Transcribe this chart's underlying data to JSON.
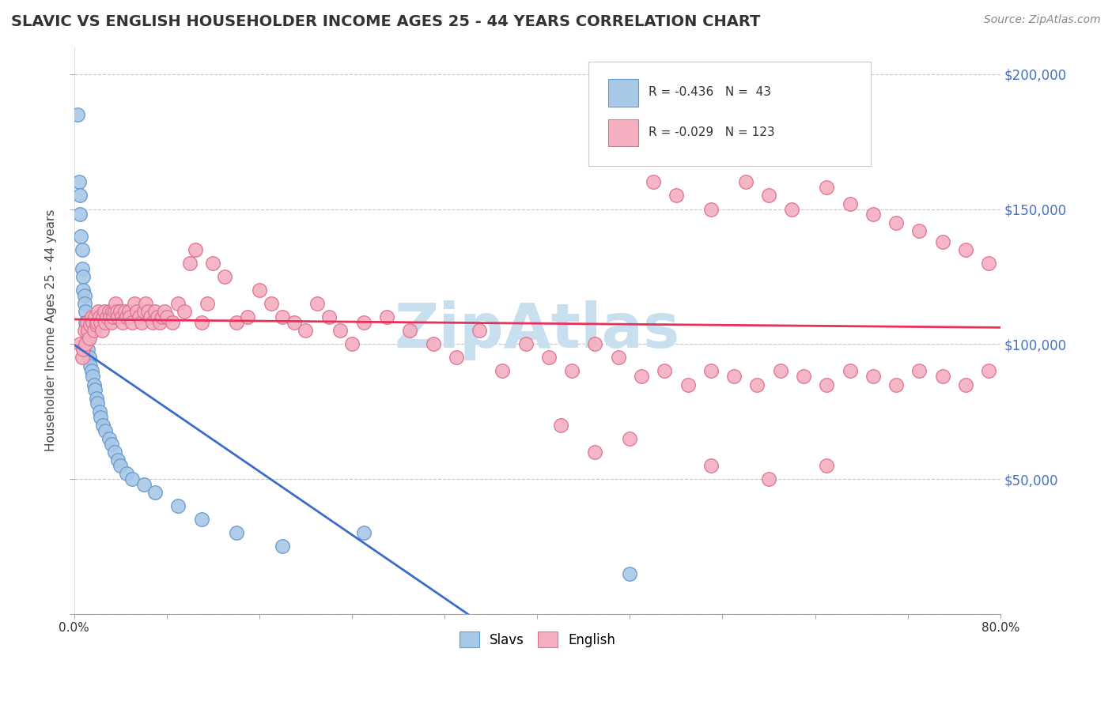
{
  "title": "SLAVIC VS ENGLISH HOUSEHOLDER INCOME AGES 25 - 44 YEARS CORRELATION CHART",
  "source": "Source: ZipAtlas.com",
  "ylabel": "Householder Income Ages 25 - 44 years",
  "xlim": [
    0.0,
    0.8
  ],
  "ylim": [
    0,
    210000
  ],
  "yticks": [
    0,
    50000,
    100000,
    150000,
    200000
  ],
  "ytick_labels_right": [
    "",
    "$50,000",
    "$100,000",
    "$150,000",
    "$200,000"
  ],
  "xticks": [
    0.0,
    0.08,
    0.16,
    0.24,
    0.32,
    0.4,
    0.48,
    0.56,
    0.64,
    0.72,
    0.8
  ],
  "xtick_labels": [
    "0.0%",
    "",
    "",
    "",
    "",
    "",
    "",
    "",
    "",
    "",
    "80.0%"
  ],
  "slavs_color": "#a8c8e8",
  "slavs_edge_color": "#6699cc",
  "english_color": "#f4afc0",
  "english_edge_color": "#e07090",
  "slavs_line_color": "#3a6cc8",
  "english_line_color": "#e8305a",
  "background_color": "#ffffff",
  "grid_color": "#c8c8c8",
  "watermark_color": "#c8dff0",
  "slavs_x": [
    0.003,
    0.004,
    0.005,
    0.005,
    0.006,
    0.007,
    0.007,
    0.008,
    0.008,
    0.009,
    0.009,
    0.01,
    0.01,
    0.011,
    0.012,
    0.012,
    0.013,
    0.014,
    0.015,
    0.016,
    0.017,
    0.018,
    0.019,
    0.02,
    0.022,
    0.023,
    0.025,
    0.027,
    0.03,
    0.032,
    0.035,
    0.038,
    0.04,
    0.045,
    0.05,
    0.06,
    0.07,
    0.09,
    0.11,
    0.14,
    0.18,
    0.25,
    0.48
  ],
  "slavs_y": [
    185000,
    160000,
    155000,
    148000,
    140000,
    135000,
    128000,
    125000,
    120000,
    118000,
    115000,
    112000,
    108000,
    105000,
    102000,
    98000,
    95000,
    92000,
    90000,
    88000,
    85000,
    83000,
    80000,
    78000,
    75000,
    73000,
    70000,
    68000,
    65000,
    63000,
    60000,
    57000,
    55000,
    52000,
    50000,
    48000,
    45000,
    40000,
    35000,
    30000,
    25000,
    30000,
    15000
  ],
  "english_x": [
    0.005,
    0.007,
    0.008,
    0.009,
    0.01,
    0.011,
    0.012,
    0.013,
    0.014,
    0.015,
    0.016,
    0.017,
    0.018,
    0.019,
    0.02,
    0.021,
    0.022,
    0.023,
    0.024,
    0.025,
    0.026,
    0.027,
    0.028,
    0.03,
    0.031,
    0.032,
    0.033,
    0.034,
    0.035,
    0.036,
    0.037,
    0.038,
    0.04,
    0.041,
    0.042,
    0.044,
    0.045,
    0.047,
    0.048,
    0.05,
    0.052,
    0.054,
    0.056,
    0.058,
    0.06,
    0.062,
    0.064,
    0.066,
    0.068,
    0.07,
    0.072,
    0.074,
    0.076,
    0.078,
    0.08,
    0.085,
    0.09,
    0.095,
    0.1,
    0.105,
    0.11,
    0.115,
    0.12,
    0.13,
    0.14,
    0.15,
    0.16,
    0.17,
    0.18,
    0.19,
    0.2,
    0.21,
    0.22,
    0.23,
    0.24,
    0.25,
    0.27,
    0.29,
    0.31,
    0.33,
    0.35,
    0.37,
    0.39,
    0.41,
    0.43,
    0.45,
    0.47,
    0.49,
    0.51,
    0.53,
    0.55,
    0.57,
    0.59,
    0.61,
    0.63,
    0.65,
    0.67,
    0.69,
    0.71,
    0.73,
    0.75,
    0.77,
    0.79,
    0.5,
    0.52,
    0.55,
    0.58,
    0.6,
    0.62,
    0.65,
    0.67,
    0.69,
    0.71,
    0.73,
    0.75,
    0.77,
    0.79,
    0.42,
    0.45,
    0.48,
    0.55,
    0.6,
    0.65
  ],
  "english_y": [
    100000,
    95000,
    98000,
    105000,
    100000,
    108000,
    105000,
    102000,
    107000,
    110000,
    108000,
    105000,
    110000,
    107000,
    108000,
    112000,
    110000,
    108000,
    105000,
    110000,
    112000,
    108000,
    110000,
    112000,
    110000,
    108000,
    112000,
    110000,
    112000,
    115000,
    112000,
    110000,
    112000,
    110000,
    108000,
    112000,
    110000,
    112000,
    110000,
    108000,
    115000,
    112000,
    110000,
    108000,
    112000,
    115000,
    112000,
    110000,
    108000,
    112000,
    110000,
    108000,
    110000,
    112000,
    110000,
    108000,
    115000,
    112000,
    130000,
    135000,
    108000,
    115000,
    130000,
    125000,
    108000,
    110000,
    120000,
    115000,
    110000,
    108000,
    105000,
    115000,
    110000,
    105000,
    100000,
    108000,
    110000,
    105000,
    100000,
    95000,
    105000,
    90000,
    100000,
    95000,
    90000,
    100000,
    95000,
    88000,
    90000,
    85000,
    90000,
    88000,
    85000,
    90000,
    88000,
    85000,
    90000,
    88000,
    85000,
    90000,
    88000,
    85000,
    90000,
    160000,
    155000,
    150000,
    160000,
    155000,
    150000,
    158000,
    152000,
    148000,
    145000,
    142000,
    138000,
    135000,
    130000,
    70000,
    60000,
    65000,
    55000,
    50000,
    55000
  ]
}
